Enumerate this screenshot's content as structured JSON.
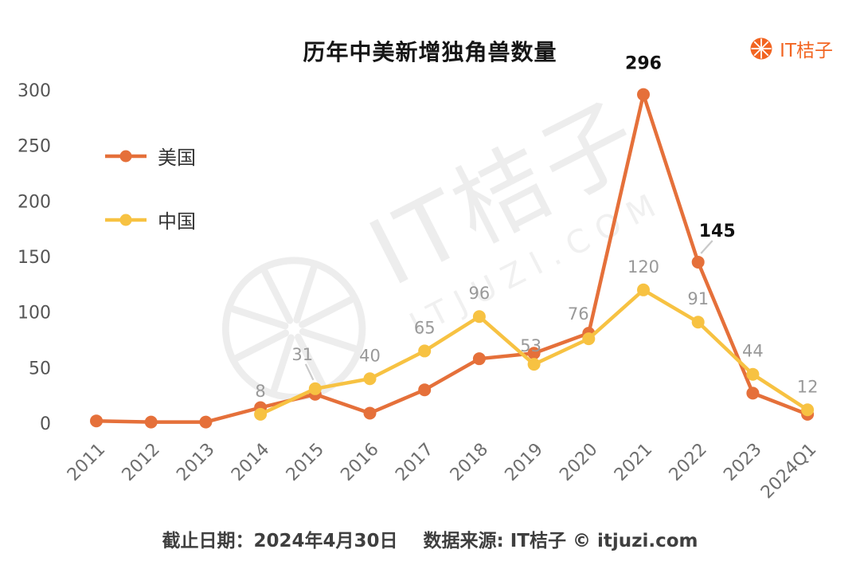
{
  "header": {
    "title": "历年中美新增独角兽数量",
    "logo_text": "IT桔子"
  },
  "watermark": {
    "text_main": "IT桔子",
    "text_sub": "ITJUZI.COM"
  },
  "footer": {
    "caption": "截止日期：2024年4月30日    数据来源: IT桔子 © itjuzi.com"
  },
  "colors": {
    "us_line": "#E5703A",
    "china_line": "#F7C242",
    "label_gray": "#999999",
    "label_black": "#111111",
    "brand_orange": "#F26522",
    "watermark_gray": "#ededed"
  },
  "chart_data": {
    "type": "line",
    "title": "历年中美新增独角兽数量",
    "categories": [
      "2011",
      "2012",
      "2013",
      "2014",
      "2015",
      "2016",
      "2017",
      "2018",
      "2019",
      "2020",
      "2021",
      "2022",
      "2023",
      "2024Q1"
    ],
    "yticks": [
      0,
      50,
      100,
      150,
      200,
      250,
      300
    ],
    "ylim": [
      0,
      300
    ],
    "grid": false,
    "legend_position": "inside-top-left",
    "series": [
      {
        "name": "美国",
        "color": "#E5703A",
        "values": [
          2,
          1,
          1,
          14,
          26,
          9,
          30,
          58,
          63,
          81,
          296,
          145,
          27,
          8
        ],
        "labeled_indices": [
          10,
          11
        ],
        "label_style": "bold-black"
      },
      {
        "name": "中国",
        "color": "#F7C242",
        "values": [
          null,
          null,
          null,
          8,
          31,
          40,
          65,
          96,
          53,
          76,
          120,
          91,
          44,
          12
        ],
        "labeled_indices": [
          3,
          4,
          5,
          6,
          7,
          8,
          9,
          10,
          11,
          12,
          13
        ],
        "label_style": "gray"
      }
    ]
  }
}
